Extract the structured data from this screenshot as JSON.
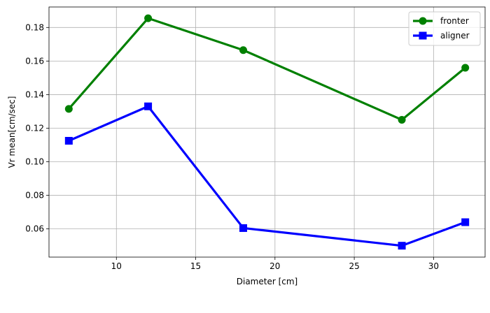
{
  "chart_data": {
    "type": "line",
    "xlabel": "Diameter [cm]",
    "ylabel": "Vr mean[cm/sec]",
    "x": [
      7,
      12,
      18,
      28,
      32
    ],
    "series": [
      {
        "name": "fronter",
        "values": [
          0.1315,
          0.1855,
          0.1665,
          0.125,
          0.156
        ],
        "color": "#008000",
        "marker": "circle"
      },
      {
        "name": "aligner",
        "values": [
          0.1125,
          0.133,
          0.0605,
          0.05,
          0.064
        ],
        "color": "#0000ff",
        "marker": "square"
      }
    ],
    "xlim": [
      5.75,
      33.25
    ],
    "ylim": [
      0.0432,
      0.1922
    ],
    "xticks": [
      10,
      15,
      20,
      25,
      30
    ],
    "xtick_labels": [
      "10",
      "15",
      "20",
      "25",
      "30"
    ],
    "yticks": [
      0.06,
      0.08,
      0.1,
      0.12,
      0.14,
      0.16,
      0.18
    ],
    "ytick_labels": [
      "0.06",
      "0.08",
      "0.10",
      "0.12",
      "0.14",
      "0.16",
      "0.18"
    ],
    "grid": true,
    "legend_position": "top-right"
  }
}
